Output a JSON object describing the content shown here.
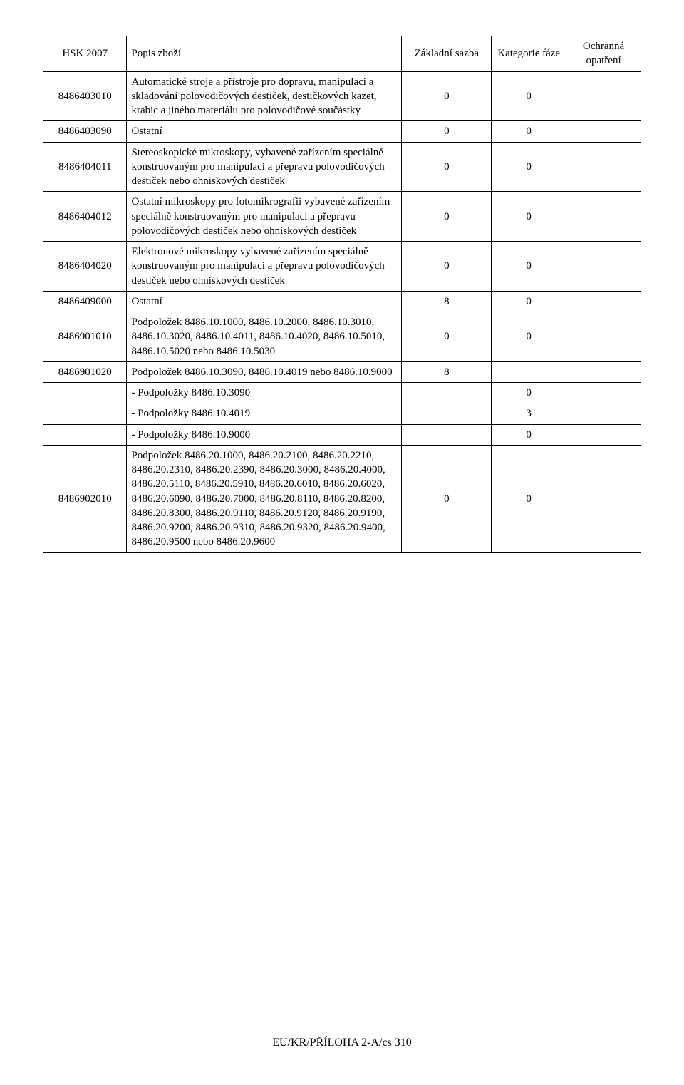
{
  "table": {
    "headers": {
      "hsk": "HSK 2007",
      "popis": "Popis zboží",
      "sazba": "Základní sazba",
      "kategorie": "Kategorie fáze",
      "opatreni": "Ochranná opatření"
    },
    "rows": [
      {
        "hsk": "8486403010",
        "popis": "Automatické stroje a přístroje pro dopravu, manipulaci a skladování polovodičových destiček, destičkových kazet, krabic a jiného materiálu pro polovodičové součástky",
        "sazba": "0",
        "kat": "0",
        "opatreni": ""
      },
      {
        "hsk": "8486403090",
        "popis": "Ostatní",
        "sazba": "0",
        "kat": "0",
        "opatreni": ""
      },
      {
        "hsk": "8486404011",
        "popis": "Stereoskopické mikroskopy, vybavené zařízením speciálně konstruovaným pro manipulaci a přepravu polovodičových destiček nebo ohniskových destiček",
        "sazba": "0",
        "kat": "0",
        "opatreni": ""
      },
      {
        "hsk": "8486404012",
        "popis": "Ostatní mikroskopy pro fotomikrografii vybavené zařízením speciálně konstruovaným pro manipulaci a přepravu polovodičových destiček nebo ohniskových destiček",
        "sazba": "0",
        "kat": "0",
        "opatreni": ""
      },
      {
        "hsk": "8486404020",
        "popis": "Elektronové mikroskopy vybavené zařízením speciálně konstruovaným pro manipulaci a přepravu polovodičových destiček nebo ohniskových destiček",
        "sazba": "0",
        "kat": "0",
        "opatreni": ""
      },
      {
        "hsk": "8486409000",
        "popis": "Ostatní",
        "sazba": "8",
        "kat": "0",
        "opatreni": ""
      },
      {
        "hsk": "8486901010",
        "popis": "Podpoložek 8486.10.1000, 8486.10.2000, 8486.10.3010, 8486.10.3020, 8486.10.4011, 8486.10.4020, 8486.10.5010, 8486.10.5020 nebo 8486.10.5030",
        "sazba": "0",
        "kat": "0",
        "opatreni": ""
      },
      {
        "hsk": "8486901020",
        "popis": "Podpoložek 8486.10.3090, 8486.10.4019 nebo 8486.10.9000",
        "sazba": "8",
        "kat": "",
        "opatreni": ""
      },
      {
        "hsk": "",
        "popis": "- Podpoložky 8486.10.3090",
        "sazba": "",
        "kat": "0",
        "opatreni": ""
      },
      {
        "hsk": "",
        "popis": "- Podpoložky 8486.10.4019",
        "sazba": "",
        "kat": "3",
        "opatreni": ""
      },
      {
        "hsk": "",
        "popis": "- Podpoložky 8486.10.9000",
        "sazba": "",
        "kat": "0",
        "opatreni": ""
      },
      {
        "hsk": "8486902010",
        "popis": "Podpoložek 8486.20.1000, 8486.20.2100, 8486.20.2210, 8486.20.2310, 8486.20.2390, 8486.20.3000, 8486.20.4000, 8486.20.5110, 8486.20.5910, 8486.20.6010, 8486.20.6020, 8486.20.6090, 8486.20.7000, 8486.20.8110, 8486.20.8200, 8486.20.8300, 8486.20.9110, 8486.20.9120, 8486.20.9190, 8486.20.9200, 8486.20.9310, 8486.20.9320, 8486.20.9400, 8486.20.9500 nebo 8486.20.9600",
        "sazba": "0",
        "kat": "0",
        "opatreni": ""
      }
    ]
  },
  "footer": "EU/KR/PŘÍLOHA 2-A/cs 310"
}
